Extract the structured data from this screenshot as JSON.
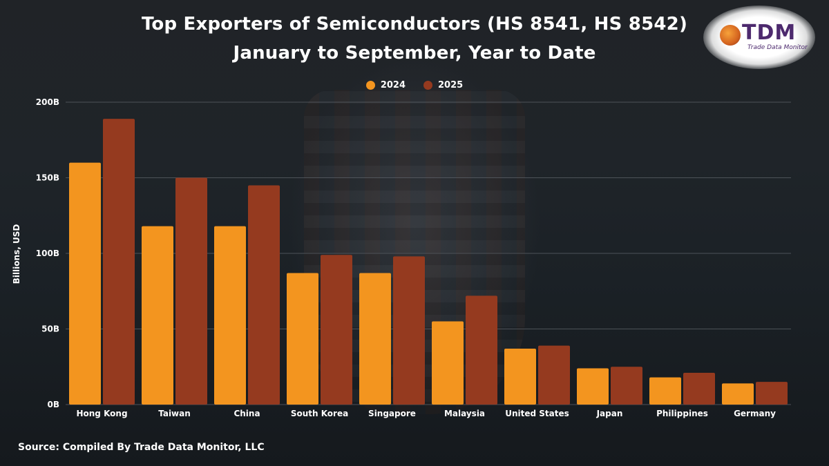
{
  "title_line1": "Top Exporters of Semiconductors (HS 8541, HS 8542)",
  "title_line2": "January to September, Year to Date",
  "logo": {
    "text": "TDM",
    "tagline": "Trade Data Monitor"
  },
  "source": "Source: Compiled By Trade Data Monitor, LLC",
  "colors": {
    "series_2024": "#f3951f",
    "series_2025": "#953a1f",
    "gridline": "#5a5f66",
    "text": "#ffffff"
  },
  "chart_data": {
    "type": "bar",
    "title": "Top Exporters of Semiconductors (HS 8541, HS 8542) January to September, Year to Date",
    "xlabel": "",
    "ylabel": "Billions, USD",
    "ylim": [
      0,
      200
    ],
    "yticks": [
      0,
      50,
      100,
      150,
      200
    ],
    "ytick_labels": [
      "0B",
      "50B",
      "100B",
      "150B",
      "200B"
    ],
    "grid": true,
    "legend_position": "top-center",
    "categories": [
      "Hong Kong",
      "Taiwan",
      "China",
      "South Korea",
      "Singapore",
      "Malaysia",
      "United States",
      "Japan",
      "Philippines",
      "Germany"
    ],
    "series": [
      {
        "name": "2024",
        "values": [
          160,
          118,
          118,
          87,
          87,
          55,
          37,
          24,
          18,
          14
        ]
      },
      {
        "name": "2025",
        "values": [
          189,
          150,
          145,
          99,
          98,
          72,
          39,
          25,
          21,
          15
        ]
      }
    ]
  }
}
